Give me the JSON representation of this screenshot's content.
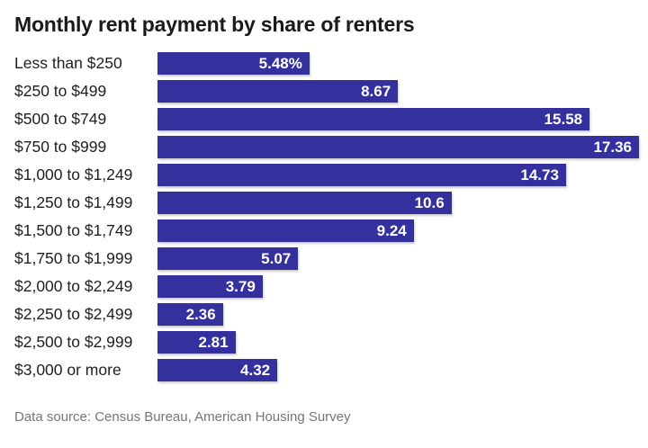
{
  "title": "Monthly rent payment by share of renters",
  "footer": "Data source: Census Bureau, American Housing Survey",
  "colors": {
    "bar": "#34309e",
    "bar_value_text": "#ffffff",
    "category_label_text": "#1f1f1f",
    "title_text": "#1a1a1a",
    "footer_text": "#757575",
    "background": "#ffffff"
  },
  "chart_data": {
    "type": "bar",
    "orientation": "horizontal",
    "title": "Monthly rent payment by share of renters",
    "xlabel": "",
    "ylabel": "",
    "categories": [
      "Less than $250",
      "$250 to $499",
      "$500 to $749",
      "$750 to $999",
      "$1,000 to $1,249",
      "$1,250 to $1,499",
      "$1,500 to $1,749",
      "$1,750 to $1,999",
      "$2,000 to $2,249",
      "$2,250 to $2,499",
      "$2,500 to $2,999",
      "$3,000 or more"
    ],
    "values": [
      5.48,
      8.67,
      15.58,
      17.36,
      14.73,
      10.6,
      9.24,
      5.07,
      3.79,
      2.36,
      2.81,
      4.32
    ],
    "value_labels": [
      "5.48%",
      "8.67",
      "15.58",
      "17.36",
      "14.73",
      "10.6",
      "9.24",
      "5.07",
      "3.79",
      "2.36",
      "2.81",
      "4.32"
    ],
    "xlim": [
      0,
      17.36
    ],
    "grid": false,
    "legend": false,
    "data_source": "Census Bureau, American Housing Survey"
  }
}
